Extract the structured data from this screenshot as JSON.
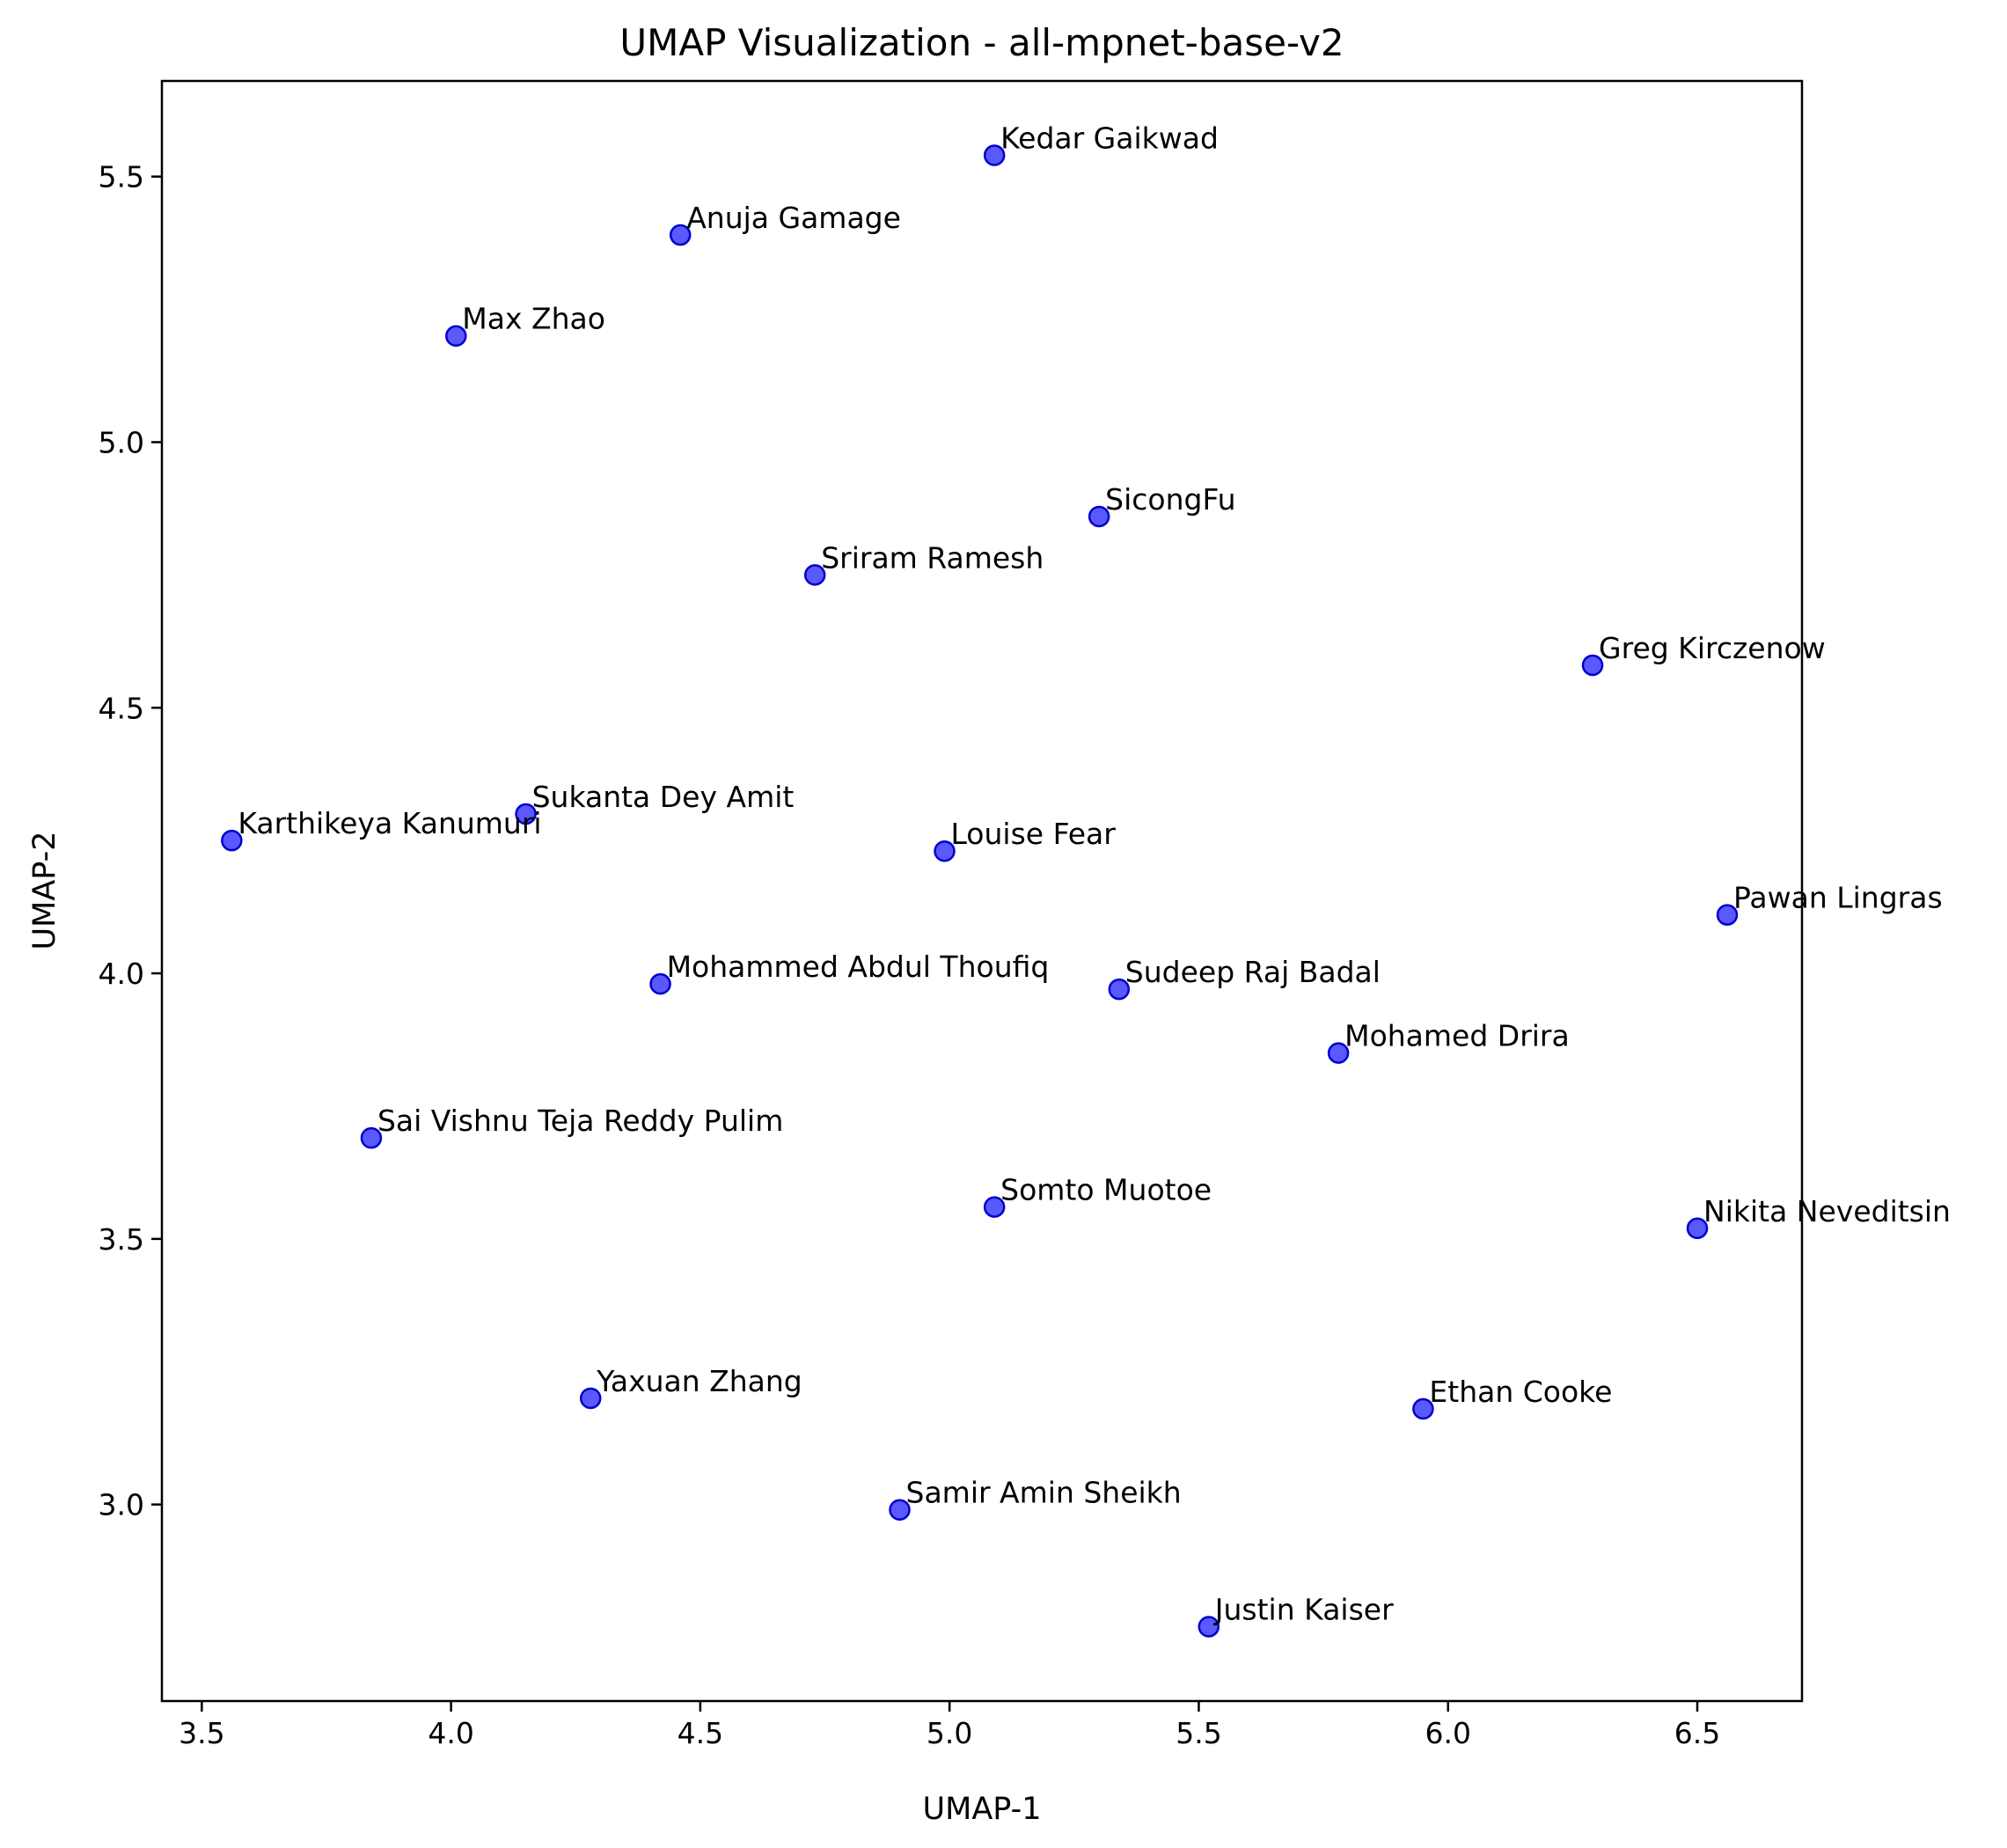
{
  "chart_data": {
    "type": "scatter",
    "title": "UMAP Visualization - all-mpnet-base-v2",
    "xlabel": "UMAP-1",
    "ylabel": "UMAP-2",
    "xlim": [
      3.42,
      6.71
    ],
    "ylim": [
      2.63,
      5.68
    ],
    "xticks": [
      3.5,
      4.0,
      4.5,
      5.0,
      5.5,
      6.0,
      6.5
    ],
    "xtick_labels": [
      "3.5",
      "4.0",
      "4.5",
      "5.0",
      "5.5",
      "6.0",
      "6.5"
    ],
    "yticks": [
      3.0,
      3.5,
      4.0,
      4.5,
      5.0,
      5.5
    ],
    "ytick_labels": [
      "3.0",
      "3.5",
      "4.0",
      "4.5",
      "5.0",
      "5.5"
    ],
    "grid": false,
    "legend": "none",
    "marker_color": "#0000ff",
    "marker_edge_color": "#0000cc",
    "points": [
      {
        "label": "Kedar Gaikwad",
        "x": 5.09,
        "y": 5.54
      },
      {
        "label": "Anuja Gamage",
        "x": 4.46,
        "y": 5.39
      },
      {
        "label": "Max Zhao",
        "x": 4.01,
        "y": 5.2
      },
      {
        "label": "SicongFu",
        "x": 5.3,
        "y": 4.86
      },
      {
        "label": "Sriram Ramesh",
        "x": 4.73,
        "y": 4.75
      },
      {
        "label": "Greg Kirczenow",
        "x": 6.29,
        "y": 4.58
      },
      {
        "label": "Sukanta Dey Amit",
        "x": 4.15,
        "y": 4.3
      },
      {
        "label": "Karthikeya Kanumuri",
        "x": 3.56,
        "y": 4.25
      },
      {
        "label": "Louise Fear",
        "x": 4.99,
        "y": 4.23
      },
      {
        "label": "Pawan Lingras",
        "x": 6.56,
        "y": 4.11
      },
      {
        "label": "Mohammed Abdul Thoufiq",
        "x": 4.42,
        "y": 3.98
      },
      {
        "label": "Sudeep Raj Badal",
        "x": 5.34,
        "y": 3.97
      },
      {
        "label": "Mohamed Drira",
        "x": 5.78,
        "y": 3.85
      },
      {
        "label": "Sai Vishnu Teja Reddy Pulim",
        "x": 3.84,
        "y": 3.69
      },
      {
        "label": "Somto Muotoe",
        "x": 5.09,
        "y": 3.56
      },
      {
        "label": "Nikita Neveditsin",
        "x": 6.5,
        "y": 3.52
      },
      {
        "label": "Yaxuan Zhang",
        "x": 4.28,
        "y": 3.2
      },
      {
        "label": "Ethan Cooke",
        "x": 5.95,
        "y": 3.18
      },
      {
        "label": "Samir Amin Sheikh",
        "x": 4.9,
        "y": 2.99
      },
      {
        "label": "Justin Kaiser",
        "x": 5.52,
        "y": 2.77
      }
    ]
  }
}
